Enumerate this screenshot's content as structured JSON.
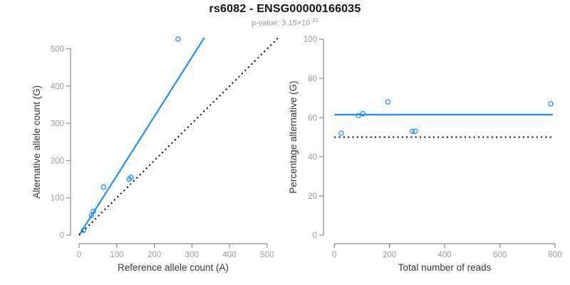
{
  "header": {
    "title": "rs6082 - ENSG00000166035",
    "pvalue_prefix": "p-value: ",
    "pvalue_base": "3.15×10",
    "pvalue_exponent": "-21"
  },
  "colors": {
    "accent_blue": "#1E90FF",
    "line_black": "#000000",
    "axis_gray": "#8c8c8c",
    "tick_label_gray": "#9c9c9c",
    "axis_label_dark": "#3a3a3a"
  },
  "chart_data": [
    {
      "type": "scatter",
      "name": "allele-counts-panel",
      "xlabel": "Reference allele count (A)",
      "ylabel": "Alternative allele count (G)",
      "xlim": [
        0,
        500
      ],
      "ylim": [
        0,
        500
      ],
      "xticks": [
        0,
        100,
        200,
        300,
        400,
        500
      ],
      "yticks": [
        0,
        100,
        200,
        300,
        400,
        500
      ],
      "grid": false,
      "legend": false,
      "marker": "open-circle",
      "points": [
        [
          12,
          13
        ],
        [
          33,
          53
        ],
        [
          38,
          64
        ],
        [
          65,
          129
        ],
        [
          133,
          150
        ],
        [
          138,
          155
        ],
        [
          263,
          526
        ]
      ],
      "lines": [
        {
          "name": "regression-line",
          "style": "solid",
          "color_key": "blue",
          "x1": 0,
          "y1": 0,
          "x2": 333,
          "y2": 530
        },
        {
          "name": "identity-line",
          "style": "dotted",
          "color_key": "black",
          "x1": 0,
          "y1": 0,
          "x2": 530,
          "y2": 530
        }
      ]
    },
    {
      "type": "scatter",
      "name": "percentage-reads-panel",
      "xlabel": "Total number of reads",
      "ylabel": "Percentage alternative (G)",
      "xlim": [
        0,
        800
      ],
      "ylim": [
        0,
        100
      ],
      "xticks": [
        0,
        200,
        400,
        600,
        800
      ],
      "yticks": [
        0,
        20,
        40,
        60,
        80,
        100
      ],
      "grid": false,
      "legend": false,
      "marker": "open-circle",
      "points": [
        [
          25,
          52
        ],
        [
          88,
          61
        ],
        [
          104,
          62
        ],
        [
          194,
          68
        ],
        [
          283,
          53
        ],
        [
          293,
          53
        ],
        [
          785,
          67
        ]
      ],
      "lines": [
        {
          "name": "mean-percentage-line",
          "style": "solid",
          "color_key": "blue",
          "x1": 0,
          "y1": 61.5,
          "x2": 792,
          "y2": 61.5
        },
        {
          "name": "fifty-percent-line",
          "style": "dotted",
          "color_key": "black",
          "x1": 0,
          "y1": 50,
          "x2": 792,
          "y2": 50
        }
      ]
    }
  ]
}
